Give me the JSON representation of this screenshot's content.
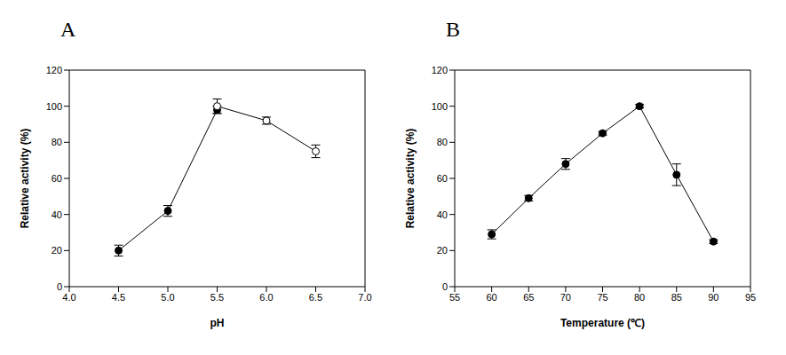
{
  "chart_data": [
    {
      "type": "line",
      "title": "A",
      "x_label": "pH",
      "y_label": "Relative activity (%)",
      "x": [
        4.5,
        5.0,
        5.5,
        6.0,
        6.5
      ],
      "series": [
        {
          "color": "#000000",
          "marker": "circle",
          "values": [
            20,
            42,
            98,
            null,
            null
          ],
          "errors": [
            3,
            3,
            2,
            null,
            null
          ]
        },
        {
          "color": "#000000",
          "marker": "open_circle",
          "values": [
            null,
            null,
            100,
            92,
            75
          ],
          "errors": [
            null,
            null,
            4,
            2,
            3.5
          ]
        }
      ],
      "xlim": [
        4.0,
        7.0
      ],
      "xticks": [
        {
          "value": 4.0,
          "label": "4.0"
        },
        {
          "value": 4.5,
          "label": "4.5"
        },
        {
          "value": 5.0,
          "label": "5.0"
        },
        {
          "value": 5.5,
          "label": "5.5"
        },
        {
          "value": 6.0,
          "label": "6.0"
        },
        {
          "value": 6.5,
          "label": "6.5"
        },
        {
          "value": 7.0,
          "label": "7.0"
        }
      ],
      "ylim": [
        0,
        120
      ],
      "yticks": [
        0,
        20,
        40,
        60,
        80,
        100,
        120
      ],
      "grid": false
    },
    {
      "type": "line",
      "title": "B",
      "x_label": "Temperature (℃)",
      "y_label": "Relative activity (%)",
      "x": [
        60,
        65,
        70,
        75,
        80,
        85,
        90
      ],
      "series": [
        {
          "color": "#000000",
          "marker": "circle",
          "values": [
            29,
            49,
            68,
            85,
            100,
            62,
            25
          ],
          "errors": [
            2.5,
            1.5,
            3,
            1,
            1,
            6,
            1
          ]
        }
      ],
      "xlim": [
        55,
        95
      ],
      "xticks": [
        55,
        60,
        65,
        70,
        75,
        80,
        85,
        90,
        95
      ],
      "ylim": [
        0,
        120
      ],
      "yticks": [
        0,
        20,
        40,
        60,
        80,
        100,
        120
      ],
      "grid": false
    }
  ]
}
